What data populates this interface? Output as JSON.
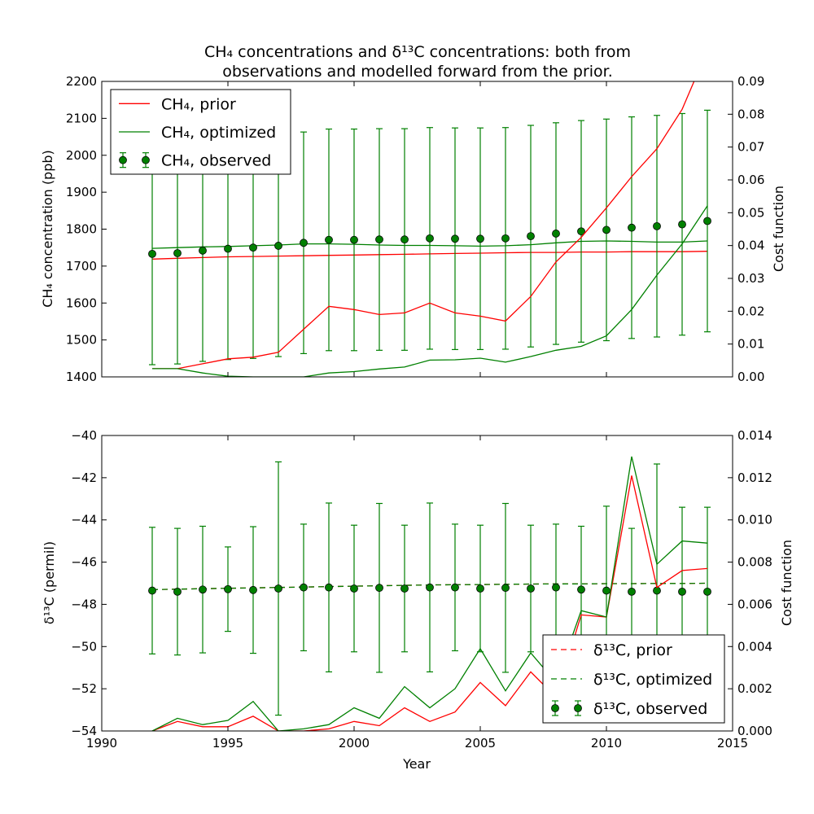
{
  "figure": {
    "title_line1": "CH₄ concentrations and δ¹³C concentrations: both from",
    "title_line2": "observations and modelled forward from the prior."
  },
  "chart_data": [
    {
      "type": "line",
      "ylabel": "CH₄ concentration (ppb)",
      "y2label": "Cost function",
      "xlabel": "",
      "xlim": [
        1990,
        2015
      ],
      "ylim": [
        1400,
        2200
      ],
      "y2lim": [
        0,
        0.09
      ],
      "yticks": [
        1400,
        1500,
        1600,
        1700,
        1800,
        1900,
        2000,
        2100,
        2200
      ],
      "y2ticks": [
        "0.00",
        "0.01",
        "0.02",
        "0.03",
        "0.04",
        "0.05",
        "0.06",
        "0.07",
        "0.08",
        "0.09"
      ],
      "x": [
        1992,
        1993,
        1994,
        1995,
        1996,
        1997,
        1998,
        1999,
        2000,
        2001,
        2002,
        2003,
        2004,
        2005,
        2006,
        2007,
        2008,
        2009,
        2010,
        2011,
        2012,
        2013,
        2014
      ],
      "legend_position": "top-left",
      "series": [
        {
          "name": "CH₄, prior",
          "color": "#ff0000",
          "axis": "left",
          "values": [
            1719,
            1721,
            1723,
            1725,
            1726,
            1727,
            1728,
            1729,
            1730,
            1731,
            1732,
            1733,
            1734,
            1735,
            1736,
            1737,
            1737,
            1738,
            1738,
            1739,
            1739,
            1739,
            1740
          ]
        },
        {
          "name": "CH₄, optimized",
          "color": "#008000",
          "axis": "left",
          "values": [
            1748,
            1750,
            1752,
            1753,
            1755,
            1757,
            1760,
            1760,
            1759,
            1757,
            1756,
            1756,
            1755,
            1754,
            1755,
            1758,
            1763,
            1767,
            1768,
            1767,
            1765,
            1765,
            1768
          ]
        },
        {
          "name": "CH₄, observed",
          "color": "#008000",
          "axis": "left",
          "style": "errorbar",
          "values": [
            1733,
            1735,
            1742,
            1747,
            1750,
            1755,
            1763,
            1771,
            1771,
            1772,
            1772,
            1775,
            1774,
            1774,
            1775,
            1781,
            1788,
            1794,
            1798,
            1804,
            1808,
            1813,
            1822
          ],
          "errors": [
            300,
            300,
            300,
            300,
            300,
            300,
            300,
            300,
            300,
            300,
            300,
            300,
            300,
            300,
            300,
            300,
            300,
            300,
            300,
            300,
            300,
            300,
            300
          ]
        },
        {
          "name": "",
          "color": "#ff0000",
          "axis": "right",
          "values": [
            0.0025,
            0.0025,
            0.004,
            0.0055,
            0.006,
            0.0075,
            0.0145,
            0.0215,
            0.0205,
            0.019,
            0.0195,
            0.0225,
            0.0195,
            0.0185,
            0.017,
            0.0245,
            0.035,
            0.0425,
            0.0515,
            0.061,
            0.0695,
            0.0815,
            0.0995
          ]
        },
        {
          "name": "",
          "color": "#008000",
          "axis": "right",
          "values": [
            0.0025,
            0.0025,
            0.0012,
            0.0002,
            0.0,
            0.0,
            0.0,
            0.0012,
            0.0016,
            0.0024,
            0.003,
            0.0051,
            0.0052,
            0.0057,
            0.0045,
            0.0062,
            0.0081,
            0.0093,
            0.0125,
            0.0205,
            0.031,
            0.0405,
            0.0521
          ]
        }
      ]
    },
    {
      "type": "line",
      "ylabel": "δ¹³C (permil)",
      "y2label": "Cost function",
      "xlabel": "Year",
      "xlim": [
        1990,
        2015
      ],
      "ylim": [
        -54,
        -40
      ],
      "y2lim": [
        0,
        0.014
      ],
      "xticks": [
        1990,
        1995,
        2000,
        2005,
        2010,
        2015
      ],
      "yticks": [
        "−54",
        "−52",
        "−50",
        "−48",
        "−46",
        "−44",
        "−42",
        "−40"
      ],
      "y2ticks": [
        "0.000",
        "0.002",
        "0.004",
        "0.006",
        "0.008",
        "0.010",
        "0.012",
        "0.014"
      ],
      "x": [
        1992,
        1993,
        1994,
        1995,
        1996,
        1997,
        1998,
        1999,
        2000,
        2001,
        2002,
        2003,
        2004,
        2005,
        2006,
        2007,
        2008,
        2009,
        2010,
        2011,
        2012,
        2013,
        2014
      ],
      "legend_position": "bottom-right",
      "series": [
        {
          "name": "δ¹³C, prior",
          "color": "#ff0000",
          "axis": "left",
          "style": "dashed",
          "values": [
            -47.3,
            -47.28,
            -47.26,
            -47.24,
            -47.22,
            -47.2,
            -47.18,
            -47.16,
            -47.14,
            -47.12,
            -47.1,
            -47.08,
            -47.07,
            -47.06,
            -47.05,
            -47.04,
            -47.03,
            -47.03,
            -47.02,
            -47.02,
            -47.01,
            -47.01,
            -47.0
          ]
        },
        {
          "name": "δ¹³C, optimized",
          "color": "#008000",
          "axis": "left",
          "style": "dashed",
          "values": [
            -47.3,
            -47.28,
            -47.26,
            -47.24,
            -47.22,
            -47.2,
            -47.18,
            -47.16,
            -47.14,
            -47.12,
            -47.1,
            -47.08,
            -47.07,
            -47.06,
            -47.05,
            -47.04,
            -47.03,
            -47.03,
            -47.02,
            -47.02,
            -47.01,
            -47.01,
            -47.0
          ]
        },
        {
          "name": "δ¹³C, observed",
          "color": "#008000",
          "axis": "left",
          "style": "errorbar",
          "values": [
            -47.35,
            -47.4,
            -47.3,
            -47.28,
            -47.32,
            -47.25,
            -47.2,
            -47.2,
            -47.25,
            -47.22,
            -47.25,
            -47.2,
            -47.2,
            -47.25,
            -47.22,
            -47.25,
            -47.2,
            -47.3,
            -47.35,
            -47.4,
            -47.35,
            -47.4,
            -47.4
          ],
          "errors": [
            3.0,
            3.0,
            3.0,
            2.0,
            3.0,
            6.0,
            3.0,
            4.0,
            3.0,
            4.0,
            3.0,
            4.0,
            3.0,
            3.0,
            4.0,
            3.0,
            3.0,
            3.0,
            4.0,
            3.0,
            6.0,
            4.0,
            4.0
          ]
        },
        {
          "name": "",
          "color": "#ff0000",
          "axis": "right",
          "values": [
            0.0,
            0.00045,
            0.0002,
            0.0002,
            0.0007,
            0.0,
            0.0,
            0.0001,
            0.00045,
            0.00025,
            0.0011,
            0.00045,
            0.0009,
            0.0023,
            0.0012,
            0.0028,
            0.0016,
            0.0055,
            0.0054,
            0.0121,
            0.0068,
            0.0076,
            0.0077
          ]
        },
        {
          "name": "",
          "color": "#008000",
          "axis": "right",
          "values": [
            0.0,
            0.0006,
            0.0003,
            0.0005,
            0.0014,
            0.0,
            0.0001,
            0.0003,
            0.0011,
            0.0006,
            0.0021,
            0.0011,
            0.002,
            0.0039,
            0.0019,
            0.0037,
            0.0023,
            0.0057,
            0.0054,
            0.013,
            0.0079,
            0.009,
            0.0089
          ]
        }
      ]
    }
  ]
}
